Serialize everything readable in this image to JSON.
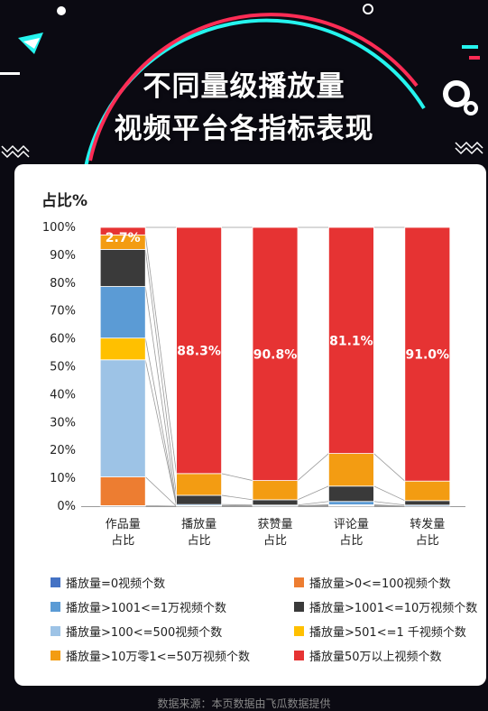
{
  "header": {
    "title_line1": "不同量级播放量",
    "title_line2": "视频平台各指标表现"
  },
  "footer": {
    "source_text": "数据来源：本页数据由飞瓜数据提供"
  },
  "colors": {
    "zero": "#4472c4",
    "le100": "#ed7d31",
    "le1w": "#5b9bd5",
    "le10w": "#3a3a3a",
    "le500": "#9dc3e6",
    "le1k": "#ffc000",
    "le50w": "#f39c12",
    "gt50w": "#e63333",
    "background_dark": "#0b0a12",
    "accent_cyan": "#25f4ee",
    "accent_pink": "#fe2c55"
  },
  "chart_data": {
    "type": "bar",
    "stacked": true,
    "ylabel": "占比%",
    "ylim": [
      0,
      100
    ],
    "yticks": [
      "0%",
      "10%",
      "20%",
      "30%",
      "40%",
      "50%",
      "60%",
      "70%",
      "80%",
      "90%",
      "100%"
    ],
    "grid": false,
    "legend_position": "bottom",
    "categories": [
      {
        "line1": "作品量",
        "line2": "占比"
      },
      {
        "line1": "播放量",
        "line2": "占比"
      },
      {
        "line1": "获赞量",
        "line2": "占比"
      },
      {
        "line1": "评论量",
        "line2": "占比"
      },
      {
        "line1": "转发量",
        "line2": "占比"
      }
    ],
    "series": [
      {
        "name": "播放量=0视频个数",
        "color_key": "zero",
        "values": [
          0.2,
          0,
          0,
          0,
          0
        ]
      },
      {
        "name": "播放量>0<=100视频个数",
        "color_key": "le100",
        "values": [
          10.3,
          0,
          0,
          0,
          0
        ]
      },
      {
        "name": "播放量>100<=500视频个数",
        "color_key": "le500",
        "values": [
          42,
          0.1,
          0.1,
          0.3,
          0
        ]
      },
      {
        "name": "播放量>501<=1 千视频个数",
        "color_key": "le1k",
        "values": [
          7.8,
          0.1,
          0,
          0.2,
          0
        ]
      },
      {
        "name": "播放量>1001<=1万视频个数",
        "color_key": "le1w",
        "values": [
          18.5,
          0.4,
          0.3,
          1.2,
          0.4
        ]
      },
      {
        "name": "播放量>1001<=10万视频个数",
        "color_key": "le10w",
        "values": [
          13.3,
          3.3,
          1.9,
          5.5,
          1.6
        ]
      },
      {
        "name": "播放量>10万零1<=50万视频个数",
        "color_key": "le50w",
        "values": [
          5.2,
          7.8,
          6.9,
          11.7,
          7.0
        ]
      },
      {
        "name": "播放量50万以上视频个数",
        "color_key": "gt50w",
        "values": [
          2.7,
          88.3,
          90.8,
          81.1,
          91.0
        ]
      }
    ],
    "data_labels": [
      "2.7%",
      "88.3%",
      "90.8%",
      "81.1%",
      "91.0%"
    ]
  },
  "legend": {
    "items": [
      {
        "label": "播放量=0视频个数",
        "color_key": "zero"
      },
      {
        "label": "播放量>0<=100视频个数",
        "color_key": "le100"
      },
      {
        "label": "播放量>1001<=1万视频个数",
        "color_key": "le1w"
      },
      {
        "label": "播放量>1001<=10万视频个数",
        "color_key": "le10w"
      },
      {
        "label": "播放量>100<=500视频个数",
        "color_key": "le500"
      },
      {
        "label": "播放量>501<=1 千视频个数",
        "color_key": "le1k"
      },
      {
        "label": "播放量>10万零1<=50万视频个数",
        "color_key": "le50w"
      },
      {
        "label": "播放量50万以上视频个数",
        "color_key": "gt50w"
      }
    ]
  }
}
